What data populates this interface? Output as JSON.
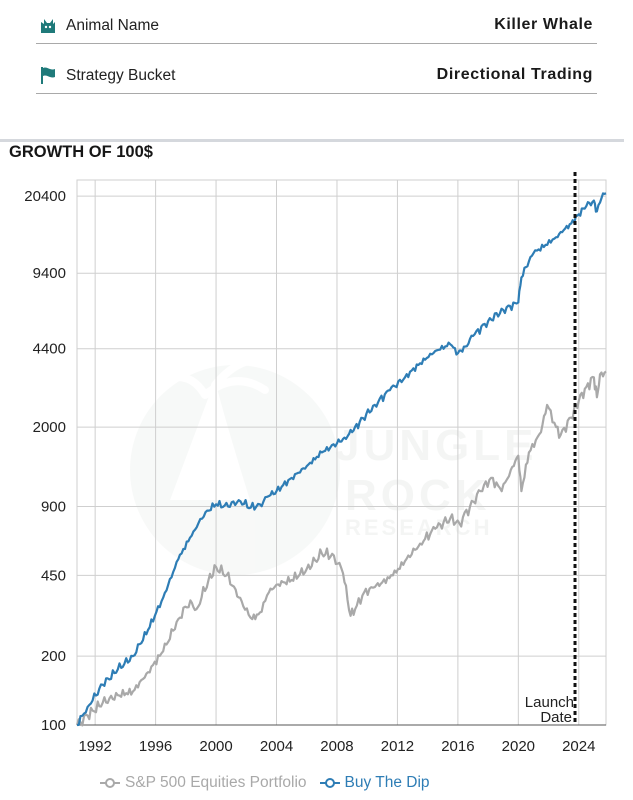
{
  "info": {
    "animal_label": "Animal Name",
    "animal_value": "Killer Whale",
    "strategy_label": "Strategy Bucket",
    "strategy_value": "Directional Trading",
    "icon_color": "#1f7a7a"
  },
  "chart_data": {
    "type": "line",
    "title": "GROWTH OF 100$",
    "y_scale": "log",
    "ylim": [
      100,
      24000
    ],
    "xlim": [
      1990.8,
      2025.8
    ],
    "y_ticks": [
      100,
      200,
      450,
      900,
      2000,
      4400,
      9400,
      20400
    ],
    "x_ticks": [
      1992,
      1996,
      2000,
      2004,
      2008,
      2012,
      2016,
      2020,
      2024
    ],
    "grid": true,
    "legend_position": "bottom",
    "annotation": {
      "x": 2023.75,
      "text_line1": "Launch",
      "text_line2": "Date",
      "style": "dashed-vertical-line"
    },
    "watermark": "JUNGLE ROCK RESEARCH",
    "series": [
      {
        "name": "S&P 500 Equities Portfolio",
        "color": "#a9a9a9",
        "x": [
          1990.8,
          1991.5,
          1992.5,
          1993.5,
          1994.5,
          1995.5,
          1996.5,
          1997.5,
          1998.3,
          1998.7,
          1999.5,
          2000.0,
          2000.7,
          2001.3,
          2001.8,
          2002.4,
          2002.9,
          2003.5,
          2004.0,
          2005.0,
          2006.0,
          2007.0,
          2007.8,
          2008.4,
          2008.9,
          2009.2,
          2009.8,
          2010.5,
          2011.0,
          2011.7,
          2012.5,
          2013.5,
          2014.5,
          2015.5,
          2016.1,
          2016.8,
          2017.5,
          2018.2,
          2018.9,
          2019.5,
          2020.0,
          2020.2,
          2020.7,
          2021.5,
          2021.9,
          2022.5,
          2022.8,
          2023.5,
          2024.0,
          2024.5,
          2025.0,
          2025.2,
          2025.4,
          2025.8
        ],
        "values": [
          100,
          110,
          125,
          135,
          140,
          170,
          210,
          290,
          350,
          320,
          430,
          490,
          450,
          390,
          330,
          290,
          310,
          380,
          410,
          430,
          480,
          560,
          550,
          460,
          300,
          320,
          380,
          400,
          420,
          450,
          520,
          620,
          720,
          800,
          760,
          900,
          1050,
          1200,
          1050,
          1300,
          1500,
          1050,
          1550,
          1900,
          2500,
          2000,
          1850,
          2200,
          2600,
          3000,
          3300,
          2700,
          3400,
          3500
        ]
      },
      {
        "name": "Buy The Dip",
        "color": "#2e7db5",
        "x": [
          1990.8,
          1991.5,
          1992.5,
          1993.5,
          1994.5,
          1995.5,
          1996.5,
          1997.5,
          1998.5,
          1999.3,
          2000.0,
          2000.8,
          2001.5,
          2002.3,
          2002.9,
          2003.5,
          2004.0,
          2005.0,
          2006.0,
          2007.0,
          2008.0,
          2008.5,
          2009.0,
          2009.5,
          2010.5,
          2011.5,
          2012.5,
          2013.5,
          2014.5,
          2015.5,
          2016.0,
          2016.5,
          2017.0,
          2018.0,
          2019.0,
          2020.0,
          2020.2,
          2020.5,
          2021.0,
          2021.8,
          2022.5,
          2023.0,
          2023.5,
          2024.0,
          2024.5,
          2025.0,
          2025.2,
          2025.5,
          2025.8
        ],
        "values": [
          100,
          120,
          150,
          175,
          200,
          260,
          360,
          530,
          700,
          850,
          920,
          900,
          960,
          890,
          920,
          1000,
          1050,
          1200,
          1350,
          1550,
          1700,
          1800,
          1900,
          2100,
          2500,
          2900,
          3300,
          3800,
          4300,
          4600,
          4200,
          4500,
          5000,
          5800,
          6500,
          7000,
          9000,
          10000,
          11500,
          12500,
          13500,
          14500,
          15500,
          17000,
          18500,
          19500,
          17500,
          20000,
          21000
        ]
      }
    ]
  }
}
